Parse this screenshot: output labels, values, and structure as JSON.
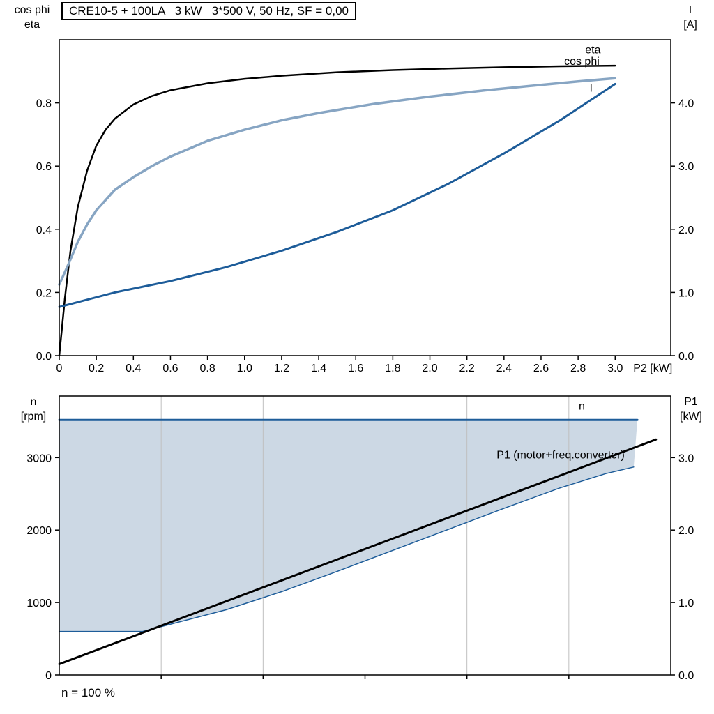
{
  "chart_data": [
    {
      "type": "line",
      "title": "CRE10-5 + 100LA   3 kW   3*500 V, 50 Hz, SF = 0,00",
      "x_axis": {
        "min": 0,
        "max": 3.3,
        "label": "P2 [kW]",
        "tick_values": [
          0,
          0.2,
          0.4,
          0.6,
          0.8,
          1.0,
          1.2,
          1.4,
          1.6,
          1.8,
          2.0,
          2.2,
          2.4,
          2.6,
          2.8,
          3.0
        ],
        "ticks": [
          "0",
          "0.2",
          "0.4",
          "0.6",
          "0.8",
          "1.0",
          "1.2",
          "1.4",
          "1.6",
          "1.8",
          "2.0",
          "2.2",
          "2.4",
          "2.6",
          "2.8",
          "3.0"
        ]
      },
      "left_axis": {
        "title_lines": [
          "cos phi",
          "eta"
        ],
        "min": 0,
        "max": 1.0,
        "tick_values": [
          0,
          0.2,
          0.4,
          0.6,
          0.8
        ],
        "ticks": [
          "0.0",
          "0.2",
          "0.4",
          "0.6",
          "0.8"
        ]
      },
      "right_axis": {
        "title_lines": [
          "I",
          "[A]"
        ],
        "min": 0,
        "max": 5.0,
        "tick_values": [
          0,
          1,
          2,
          3,
          4
        ],
        "ticks": [
          "0.0",
          "1.0",
          "2.0",
          "3.0",
          "4.0"
        ]
      },
      "series": [
        {
          "name": "eta",
          "axis": "left",
          "color": "#000000",
          "width": 2.5,
          "x": [
            0,
            0.03,
            0.06,
            0.1,
            0.15,
            0.2,
            0.25,
            0.3,
            0.4,
            0.5,
            0.6,
            0.8,
            1.0,
            1.2,
            1.5,
            1.8,
            2.1,
            2.4,
            2.7,
            3.0
          ],
          "y": [
            0,
            0.18,
            0.33,
            0.47,
            0.585,
            0.665,
            0.715,
            0.75,
            0.795,
            0.822,
            0.84,
            0.862,
            0.876,
            0.886,
            0.897,
            0.904,
            0.909,
            0.913,
            0.916,
            0.918
          ]
        },
        {
          "name": "cos phi",
          "axis": "left",
          "color": "#87a5c3",
          "width": 3.5,
          "x": [
            0,
            0.05,
            0.1,
            0.15,
            0.2,
            0.3,
            0.4,
            0.5,
            0.6,
            0.8,
            1.0,
            1.2,
            1.4,
            1.7,
            2.0,
            2.3,
            2.6,
            2.8,
            3.0
          ],
          "y": [
            0.225,
            0.29,
            0.36,
            0.415,
            0.46,
            0.525,
            0.565,
            0.6,
            0.63,
            0.68,
            0.715,
            0.745,
            0.768,
            0.797,
            0.82,
            0.84,
            0.857,
            0.868,
            0.878
          ]
        },
        {
          "name": "I",
          "axis": "right",
          "color": "#1d5c99",
          "width": 3,
          "x": [
            0,
            0.3,
            0.6,
            0.9,
            1.2,
            1.5,
            1.8,
            2.1,
            2.4,
            2.7,
            3.0
          ],
          "y": [
            0.77,
            1.0,
            1.18,
            1.4,
            1.66,
            1.96,
            2.3,
            2.72,
            3.2,
            3.72,
            4.3
          ]
        }
      ],
      "annotations": [
        {
          "text": "eta",
          "x": 2.88,
          "y": 0.957,
          "axis": "left",
          "color": "#000000"
        },
        {
          "text": "cos phi",
          "x": 2.82,
          "y": 0.921,
          "axis": "left",
          "color": "#87a5c3"
        },
        {
          "text": "I",
          "x": 2.87,
          "y": 4.18,
          "axis": "right",
          "color": "#1d5c99"
        }
      ]
    },
    {
      "type": "line",
      "title": "",
      "x_axis": {
        "min": 0,
        "max": 3.3,
        "label": "",
        "tick_values": [
          0.55,
          1.1,
          1.65,
          2.2,
          2.75
        ],
        "ticks": [
          "",
          "",
          "",
          "",
          ""
        ]
      },
      "left_axis": {
        "title_lines": [
          "n",
          "[rpm]"
        ],
        "min": 0,
        "max": 3850,
        "tick_values": [
          0,
          1000,
          2000,
          3000
        ],
        "ticks": [
          "0",
          "1000",
          "2000",
          "3000"
        ]
      },
      "right_axis": {
        "title_lines": [
          "P1",
          "[kW]"
        ],
        "min": 0,
        "max": 3.85,
        "tick_values": [
          0,
          1,
          2,
          3
        ],
        "ticks": [
          "0.0",
          "1.0",
          "2.0",
          "3.0"
        ]
      },
      "grid": {
        "x_values": [
          0.55,
          1.1,
          1.65,
          2.2,
          2.75
        ],
        "color": "#bfbfbf"
      },
      "fill_between": {
        "upper": "n",
        "lower": "n min",
        "color": "#ccd8e4"
      },
      "series": [
        {
          "name": "n min",
          "axis": "left",
          "color": "#1d5c99",
          "width": 1.5,
          "x": [
            0,
            0.45,
            0.6,
            0.9,
            1.2,
            1.5,
            1.8,
            2.1,
            2.4,
            2.7,
            2.95,
            3.1
          ],
          "y": [
            600,
            600,
            700,
            900,
            1150,
            1430,
            1720,
            2010,
            2300,
            2580,
            2780,
            2870
          ]
        },
        {
          "name": "n",
          "axis": "left",
          "color": "#1d5c99",
          "width": 3,
          "x": [
            0,
            3.12
          ],
          "y": [
            3520,
            3520
          ]
        },
        {
          "name": "P1 (motor+freq.converter)",
          "axis": "right",
          "color": "#000000",
          "width": 3,
          "x": [
            0,
            3.22
          ],
          "y": [
            0.15,
            3.25
          ]
        }
      ],
      "annotations": [
        {
          "text": "n",
          "x": 2.82,
          "y": 3660,
          "axis": "left",
          "color": "#1d5c99"
        },
        {
          "text": "P1 (motor+freq.converter)",
          "x": 2.36,
          "y": 2.99,
          "axis": "right",
          "color": "#000000",
          "anchor": "start"
        }
      ],
      "footnote": "n = 100 %"
    }
  ]
}
